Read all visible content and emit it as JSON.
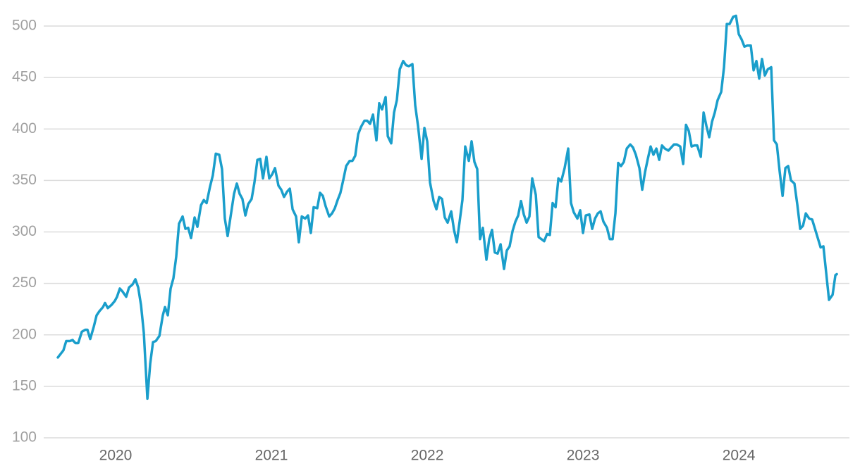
{
  "chart_data": {
    "type": "line",
    "color": "#1a9ecb",
    "grid": true,
    "xlim": [
      2019.552,
      2024.71
    ],
    "xticks": [
      2020,
      2021,
      2022,
      2023,
      2024
    ],
    "ylim": [
      100,
      520
    ],
    "yticks": [
      100,
      150,
      200,
      250,
      300,
      350,
      400,
      450,
      500
    ],
    "x": [
      2019.629,
      2019.665,
      2019.683,
      2019.706,
      2019.724,
      2019.742,
      2019.76,
      2019.783,
      2019.805,
      2019.819,
      2019.837,
      2019.86,
      2019.878,
      2019.896,
      2019.919,
      2019.932,
      2019.95,
      2019.973,
      2019.995,
      2020.009,
      2020.027,
      2020.045,
      2020.068,
      2020.086,
      2020.109,
      2020.127,
      2020.145,
      2020.163,
      2020.181,
      2020.204,
      2020.222,
      2020.24,
      2020.258,
      2020.281,
      2020.303,
      2020.317,
      2020.335,
      2020.353,
      2020.371,
      2020.389,
      2020.407,
      2020.43,
      2020.448,
      2020.466,
      2020.484,
      2020.507,
      2020.525,
      2020.548,
      2020.566,
      2020.584,
      2020.606,
      2020.624,
      2020.643,
      2020.665,
      2020.683,
      2020.701,
      2020.719,
      2020.742,
      2020.76,
      2020.778,
      2020.796,
      2020.814,
      2020.833,
      2020.851,
      2020.873,
      2020.891,
      2020.91,
      2020.928,
      2020.946,
      2020.968,
      2020.986,
      2021.005,
      2021.023,
      2021.045,
      2021.063,
      2021.081,
      2021.1,
      2021.118,
      2021.136,
      2021.158,
      2021.176,
      2021.195,
      2021.217,
      2021.235,
      2021.253,
      2021.271,
      2021.294,
      2021.312,
      2021.33,
      2021.348,
      2021.371,
      2021.389,
      2021.407,
      2021.425,
      2021.443,
      2021.462,
      2021.48,
      2021.502,
      2021.52,
      2021.538,
      2021.557,
      2021.575,
      2021.597,
      2021.615,
      2021.633,
      2021.652,
      2021.674,
      2021.692,
      2021.71,
      2021.733,
      2021.747,
      2021.769,
      2021.787,
      2021.805,
      2021.824,
      2021.846,
      2021.864,
      2021.882,
      2021.905,
      2021.923,
      2021.941,
      2021.964,
      2021.982,
      2022.0,
      2022.018,
      2022.041,
      2022.059,
      2022.077,
      2022.095,
      2022.113,
      2022.131,
      2022.154,
      2022.172,
      2022.19,
      2022.208,
      2022.226,
      2022.244,
      2022.267,
      2022.285,
      2022.303,
      2022.321,
      2022.339,
      2022.357,
      2022.38,
      2022.398,
      2022.416,
      2022.434,
      2022.452,
      2022.471,
      2022.493,
      2022.511,
      2022.529,
      2022.548,
      2022.566,
      2022.584,
      2022.602,
      2022.62,
      2022.638,
      2022.656,
      2022.674,
      2022.697,
      2022.715,
      2022.733,
      2022.751,
      2022.769,
      2022.787,
      2022.805,
      2022.824,
      2022.842,
      2022.86,
      2022.882,
      2022.905,
      2022.923,
      2022.941,
      2022.964,
      2022.982,
      2023.0,
      2023.018,
      2023.041,
      2023.059,
      2023.077,
      2023.095,
      2023.113,
      2023.131,
      2023.154,
      2023.172,
      2023.19,
      2023.208,
      2023.226,
      2023.244,
      2023.262,
      2023.281,
      2023.303,
      2023.321,
      2023.339,
      2023.362,
      2023.38,
      2023.398,
      2023.416,
      2023.434,
      2023.452,
      2023.471,
      2023.489,
      2023.507,
      2023.525,
      2023.548,
      2023.566,
      2023.584,
      2023.602,
      2023.624,
      2023.643,
      2023.661,
      2023.679,
      2023.697,
      2023.715,
      2023.733,
      2023.756,
      2023.774,
      2023.792,
      2023.81,
      2023.828,
      2023.846,
      2023.864,
      2023.887,
      2023.905,
      2023.923,
      2023.941,
      2023.964,
      2023.982,
      2024.0,
      2024.018,
      2024.036,
      2024.054,
      2024.077,
      2024.095,
      2024.113,
      2024.131,
      2024.149,
      2024.167,
      2024.186,
      2024.208,
      2024.226,
      2024.244,
      2024.262,
      2024.281,
      2024.299,
      2024.317,
      2024.335,
      2024.357,
      2024.376,
      2024.394,
      2024.412,
      2024.43,
      2024.452,
      2024.471,
      2024.489,
      2024.507,
      2024.525,
      2024.543,
      2024.561,
      2024.579,
      2024.602,
      2024.62,
      2024.629
    ],
    "values": [
      178,
      185,
      194,
      194,
      195,
      192,
      192,
      203,
      205,
      205,
      196,
      208,
      219,
      223,
      227,
      231,
      226,
      229,
      233,
      237,
      245,
      242,
      237,
      246,
      249,
      254,
      246,
      229,
      202,
      138,
      172,
      193,
      194,
      199,
      219,
      227,
      219,
      245,
      255,
      276,
      308,
      315,
      303,
      304,
      294,
      314,
      305,
      326,
      331,
      328,
      344,
      355,
      376,
      375,
      361,
      313,
      296,
      319,
      337,
      347,
      337,
      332,
      316,
      327,
      332,
      348,
      370,
      371,
      352,
      373,
      352,
      356,
      362,
      345,
      341,
      334,
      339,
      342,
      322,
      315,
      290,
      315,
      313,
      316,
      299,
      324,
      323,
      338,
      335,
      325,
      315,
      318,
      323,
      331,
      338,
      351,
      364,
      369,
      369,
      374,
      395,
      402,
      408,
      408,
      405,
      414,
      389,
      425,
      419,
      431,
      393,
      386,
      416,
      428,
      458,
      466,
      462,
      461,
      463,
      423,
      403,
      371,
      401,
      388,
      348,
      330,
      322,
      334,
      332,
      314,
      309,
      320,
      302,
      290,
      310,
      331,
      383,
      369,
      388,
      368,
      361,
      293,
      304,
      273,
      293,
      302,
      280,
      279,
      288,
      264,
      282,
      286,
      301,
      310,
      316,
      330,
      317,
      309,
      315,
      352,
      336,
      295,
      293,
      291,
      298,
      297,
      328,
      324,
      352,
      349,
      362,
      381,
      328,
      319,
      313,
      321,
      299,
      316,
      317,
      303,
      313,
      318,
      320,
      310,
      304,
      293,
      293,
      318,
      367,
      364,
      368,
      381,
      385,
      382,
      375,
      362,
      341,
      358,
      371,
      383,
      375,
      381,
      370,
      384,
      381,
      379,
      382,
      385,
      385,
      383,
      366,
      404,
      398,
      383,
      384,
      384,
      373,
      416,
      403,
      392,
      407,
      416,
      428,
      436,
      460,
      502,
      502,
      509,
      510,
      492,
      487,
      480,
      481,
      481,
      457,
      466,
      449,
      468,
      452,
      458,
      460,
      389,
      385,
      359,
      335,
      362,
      364,
      350,
      347,
      326,
      303,
      306,
      318,
      313,
      312,
      303,
      294,
      285,
      286,
      260,
      234,
      239,
      258,
      259
    ]
  }
}
